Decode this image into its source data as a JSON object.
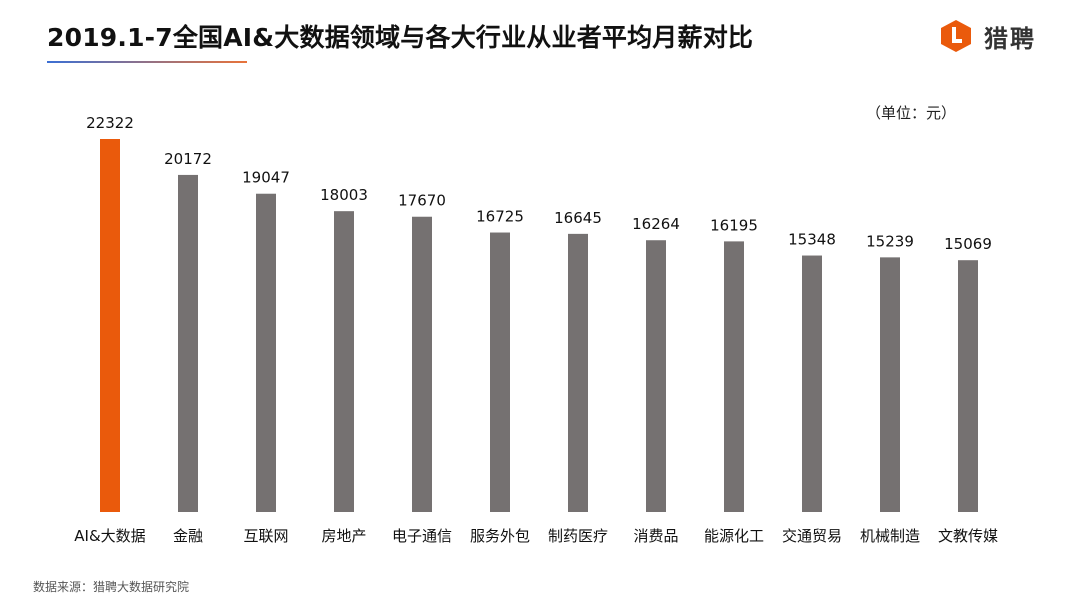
{
  "header": {
    "title": "2019.1-7全国AI&大数据领域与各大行业从业者平均月薪对比",
    "brand": "猎聘",
    "brand_logo_icon": "liepin-logo-icon",
    "brand_color": "#ea5a0c"
  },
  "unit_label": "（单位：元）",
  "source_note": "数据来源：猎聘大数据研究院",
  "colors": {
    "highlight": "#ea5a0c",
    "default_bar": "#757171"
  },
  "chart_data": {
    "type": "bar",
    "categories": [
      "AI&大数据",
      "金融",
      "互联网",
      "房地产",
      "电子通信",
      "服务外包",
      "制药医疗",
      "消费品",
      "能源化工",
      "交通贸易",
      "机械制造",
      "文教传媒"
    ],
    "values": [
      22322,
      20172,
      19047,
      18003,
      17670,
      16725,
      16645,
      16264,
      16195,
      15348,
      15239,
      15069
    ],
    "highlight_index": 0,
    "ylim": [
      0,
      22322
    ],
    "grid": false,
    "legend": "none",
    "data_labels": true
  }
}
